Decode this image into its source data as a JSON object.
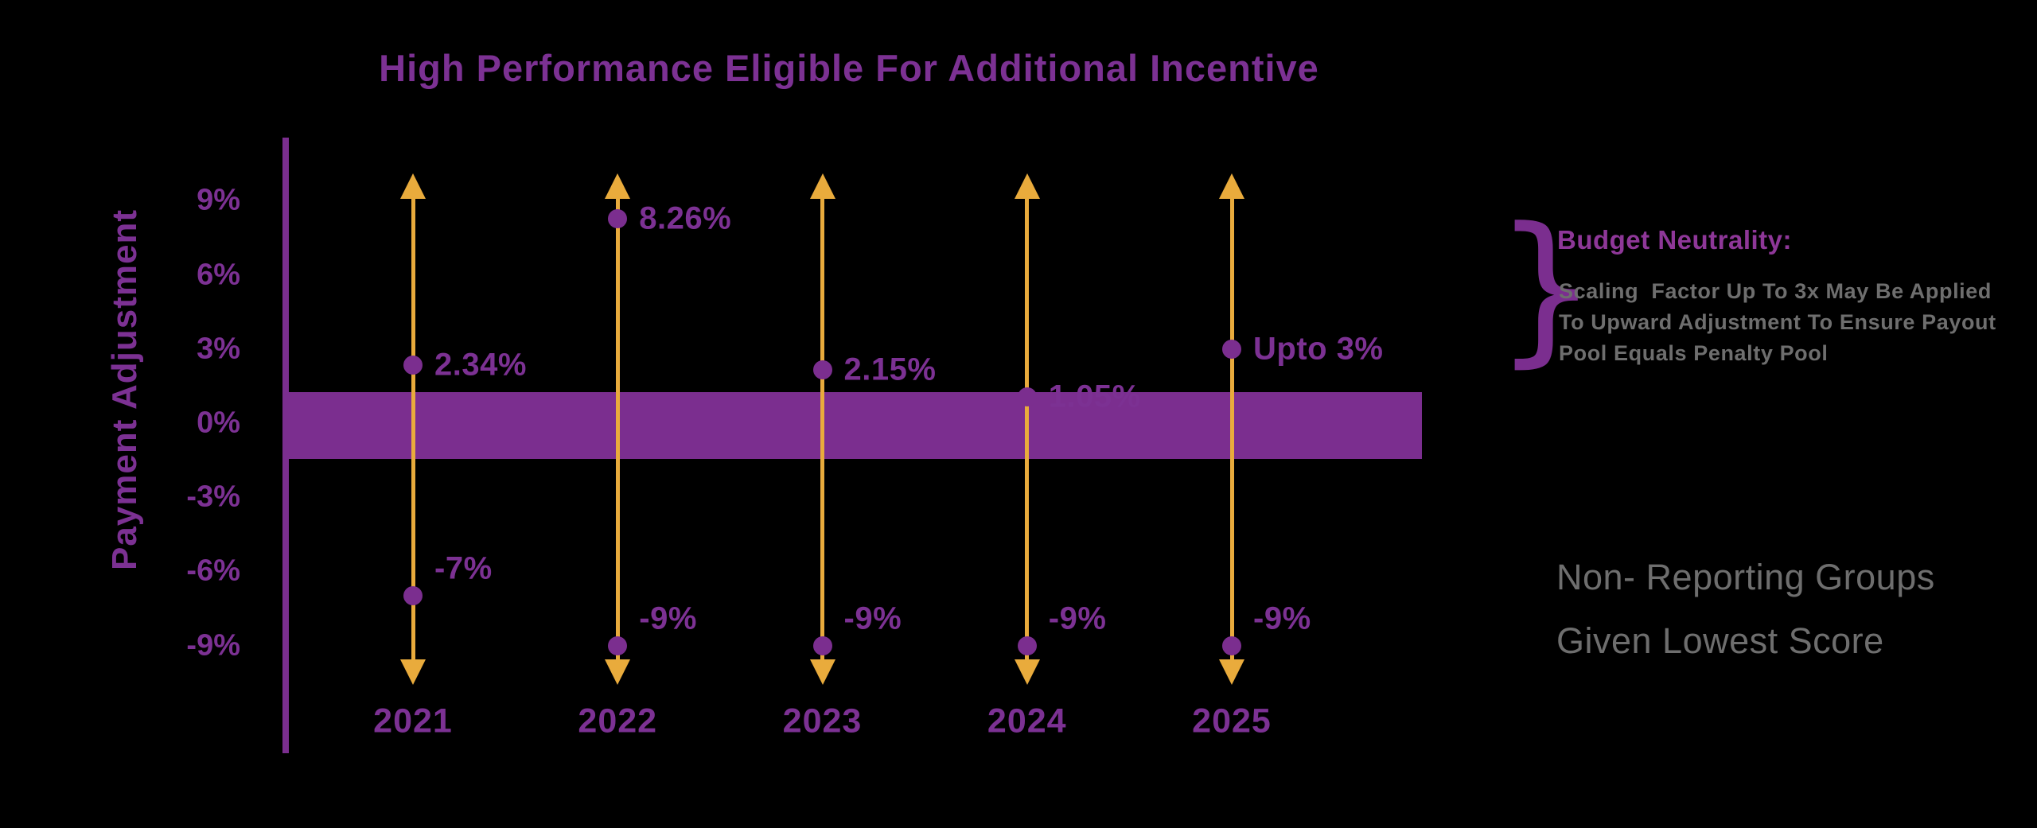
{
  "title": "High Performance Eligible For Additional Incentive",
  "y_axis": {
    "label": "Payment Adjustment",
    "ticks": [
      "9%",
      "6%",
      "3%",
      "0%",
      "-3%",
      "-6%",
      "-9%"
    ]
  },
  "chart_data": {
    "type": "scatter",
    "title": "High Performance Eligible For Additional Incentive",
    "xlabel": "",
    "ylabel": "Payment Adjustment",
    "categories": [
      "2021",
      "2022",
      "2023",
      "2024",
      "2025"
    ],
    "ylim": [
      -10.6,
      10.3
    ],
    "yticks": [
      9,
      6,
      3,
      0,
      -3,
      -6,
      -9
    ],
    "grid": false,
    "legend_position": "none",
    "series": [
      {
        "name": "maximum_upward_adjustment",
        "values": [
          2.34,
          8.26,
          2.15,
          1.05,
          3
        ],
        "labels": [
          "2.34%",
          "8.26%",
          "2.15%",
          "1.05%",
          "Upto 3%"
        ]
      },
      {
        "name": "maximum_downward_adjustment",
        "values": [
          -7,
          -9,
          -9,
          -9,
          -9
        ],
        "labels": [
          "-7%",
          "-9%",
          "-9%",
          "-9%",
          "-9%"
        ]
      }
    ],
    "neutral_band": {
      "from": -1.45,
      "to": 1.25
    },
    "arrow_extent": [
      -10.6,
      10.1
    ]
  },
  "annotations": {
    "brace_glyph": "}",
    "budget_neutrality": {
      "title": "Budget Neutrality:",
      "lines": [
        "Scaling  Factor Up To 3x May Be Applied",
        "To Upward Adjustment To Ensure Payout",
        "Pool Equals Penalty Pool"
      ]
    },
    "non_reporting": {
      "lines": [
        "Non- Reporting Groups",
        "Given Lowest Score"
      ]
    }
  },
  "colors": {
    "purple": "#7B2E8F",
    "purple_text": "#7C3193",
    "budget_title_purple": "#8E3798",
    "gold": "#E9AB3C",
    "gray": "#6E6E6E",
    "background": "#000000"
  }
}
